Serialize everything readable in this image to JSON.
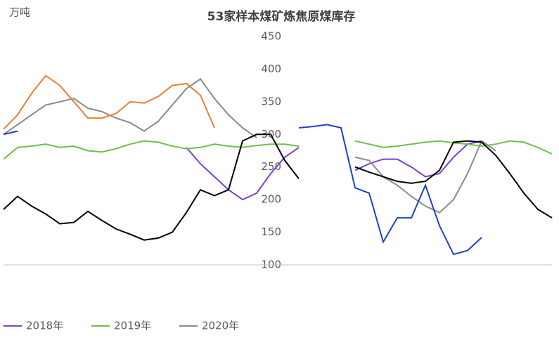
{
  "chart_data": {
    "type": "line",
    "title": "53家样本煤矿炼焦原煤库存",
    "y_label": "万吨",
    "categories": [
      null,
      null,
      null,
      null,
      null,
      null,
      null,
      null,
      null,
      null,
      null,
      null,
      null,
      null,
      null,
      null,
      null,
      null,
      null,
      null,
      null,
      null,
      null,
      null,
      null,
      null,
      null,
      null,
      null,
      null,
      null,
      null,
      null,
      null,
      null,
      null,
      null,
      null,
      null,
      null
    ],
    "ylim": [
      100,
      450
    ],
    "yticks": [
      100,
      150,
      200,
      250,
      300,
      350,
      400,
      450
    ],
    "series": [
      {
        "name": "2018年",
        "color": "#7b3fd6",
        "values": [
          null,
          null,
          null,
          null,
          null,
          null,
          null,
          null,
          null,
          null,
          null,
          null,
          null,
          280,
          255,
          235,
          215,
          200,
          210,
          240,
          265,
          280,
          null,
          null,
          null,
          245,
          255,
          262,
          262,
          250,
          235,
          240,
          265,
          285,
          290,
          null,
          null,
          null,
          null,
          null
        ]
      },
      {
        "name": "2019年",
        "color": "#6cc04a",
        "values": [
          262,
          280,
          282,
          285,
          280,
          282,
          275,
          273,
          278,
          285,
          290,
          288,
          282,
          278,
          280,
          285,
          282,
          280,
          283,
          285,
          285,
          282,
          null,
          null,
          null,
          290,
          285,
          280,
          282,
          285,
          288,
          290,
          287,
          285,
          282,
          285,
          290,
          288,
          280,
          270
        ]
      },
      {
        "name": "2020年",
        "color": "#8a8a8a",
        "values": [
          300,
          315,
          330,
          345,
          350,
          355,
          340,
          335,
          325,
          318,
          305,
          320,
          345,
          370,
          385,
          355,
          330,
          310,
          295,
          null,
          null,
          null,
          null,
          null,
          null,
          265,
          260,
          235,
          222,
          205,
          190,
          180,
          200,
          240,
          290,
          275,
          null,
          null,
          null,
          null
        ]
      },
      {
        "color": "#ed7d31",
        "values": [
          308,
          330,
          363,
          390,
          375,
          350,
          325,
          325,
          332,
          350,
          348,
          358,
          375,
          378,
          360,
          310,
          null,
          null,
          null,
          null,
          null,
          null,
          null,
          null,
          null,
          null,
          null,
          null,
          null,
          null,
          null,
          null,
          null,
          null,
          null,
          null,
          null,
          null,
          null,
          null
        ]
      },
      {
        "color": "#1f3fd0",
        "values": [
          300,
          305,
          null,
          null,
          null,
          null,
          null,
          null,
          null,
          null,
          null,
          null,
          null,
          null,
          null,
          null,
          null,
          null,
          null,
          null,
          null,
          310,
          312,
          315,
          310,
          218,
          210,
          135,
          172,
          172,
          222,
          160,
          116,
          122,
          142,
          null,
          null,
          null,
          null,
          null
        ]
      },
      {
        "color": "#000000",
        "values": [
          185,
          205,
          190,
          178,
          163,
          165,
          182,
          168,
          155,
          147,
          138,
          141,
          150,
          180,
          215,
          206,
          215,
          290,
          300,
          300,
          260,
          232,
          null,
          null,
          null,
          250,
          242,
          235,
          228,
          225,
          228,
          245,
          288,
          290,
          288,
          268,
          240,
          210,
          185,
          172
        ]
      }
    ]
  }
}
